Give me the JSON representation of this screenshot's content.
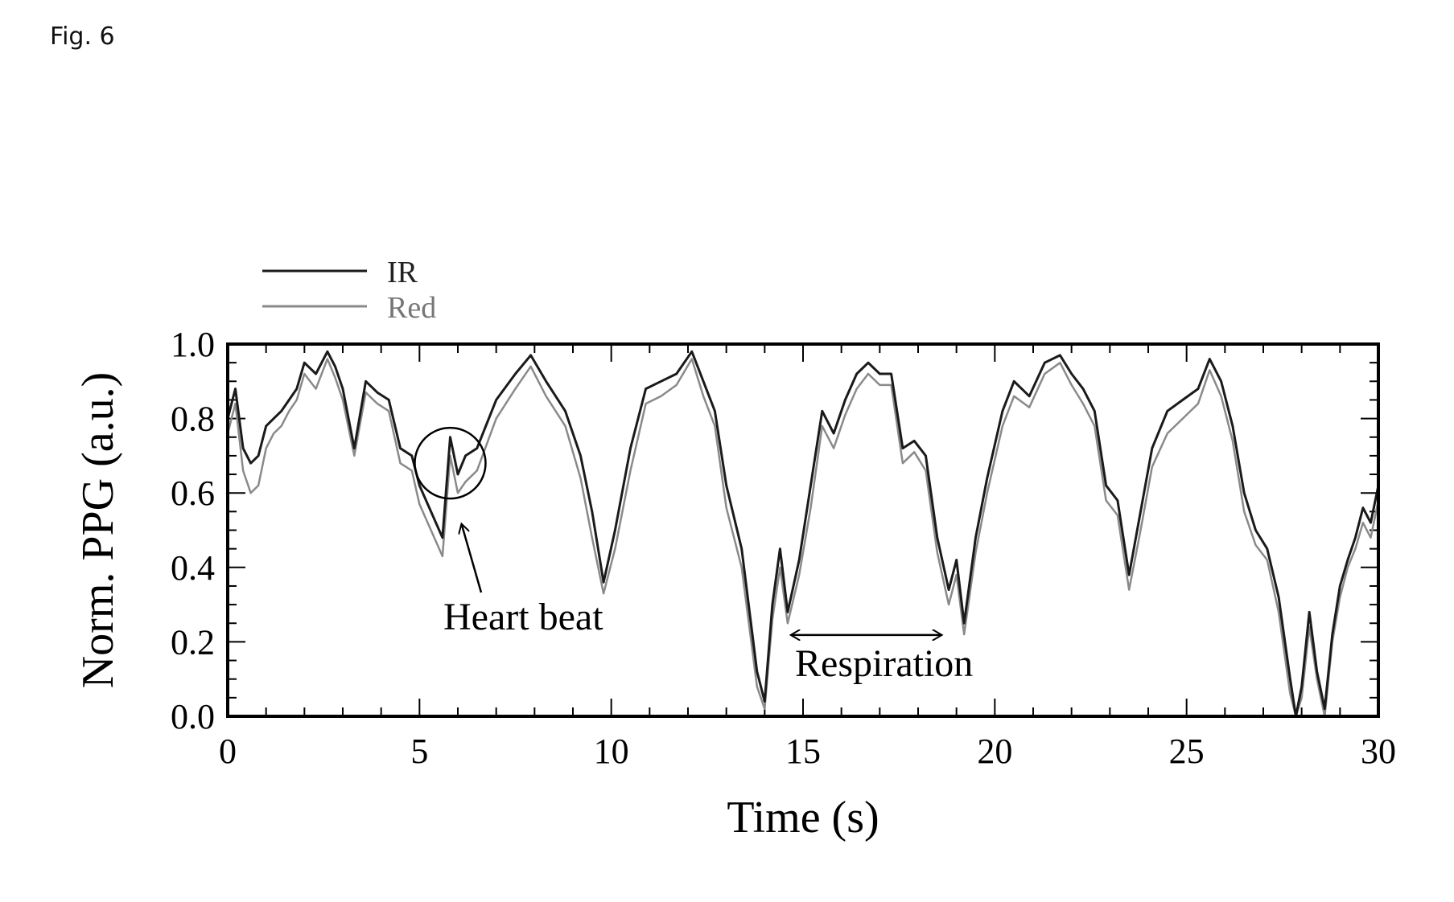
{
  "figure_label": "Fig. 6",
  "colors": {
    "ir": "#1a1a1a",
    "red": "#8a8a8a",
    "axis": "#000000"
  },
  "chart_data": {
    "type": "line",
    "xlabel": "Time (s)",
    "ylabel": "Norm. PPG (a.u.)",
    "xlim": [
      0,
      30
    ],
    "ylim": [
      0,
      1
    ],
    "xticks": [
      "0",
      "5",
      "10",
      "15",
      "20",
      "25",
      "30"
    ],
    "yticks": [
      "0.0",
      "0.2",
      "0.4",
      "0.6",
      "0.8",
      "1.0"
    ],
    "legend_position": "top-left",
    "grid": false,
    "series": [
      {
        "name": "IR",
        "x": [
          0,
          0.2,
          0.4,
          0.6,
          0.8,
          1.0,
          1.2,
          1.4,
          1.6,
          1.8,
          2.0,
          2.3,
          2.6,
          2.8,
          3.0,
          3.3,
          3.6,
          3.9,
          4.2,
          4.5,
          4.8,
          5.0,
          5.3,
          5.6,
          5.8,
          6.0,
          6.2,
          6.5,
          7.0,
          7.5,
          7.9,
          8.3,
          8.8,
          9.2,
          9.5,
          9.8,
          10.1,
          10.5,
          10.9,
          11.3,
          11.7,
          12.1,
          12.4,
          12.7,
          13.0,
          13.4,
          13.8,
          14.0,
          14.2,
          14.4,
          14.6,
          14.9,
          15.2,
          15.5,
          15.8,
          16.1,
          16.4,
          16.7,
          17.0,
          17.3,
          17.6,
          17.9,
          18.2,
          18.5,
          18.8,
          19.0,
          19.2,
          19.5,
          19.8,
          20.2,
          20.5,
          20.9,
          21.3,
          21.7,
          22.0,
          22.3,
          22.6,
          22.9,
          23.2,
          23.5,
          23.8,
          24.1,
          24.5,
          24.9,
          25.3,
          25.6,
          25.9,
          26.2,
          26.5,
          26.8,
          27.1,
          27.4,
          27.7,
          27.85,
          28.0,
          28.2,
          28.4,
          28.6,
          28.8,
          29.0,
          29.2,
          29.4,
          29.6,
          29.8,
          30.0
        ],
        "values": [
          0.8,
          0.88,
          0.72,
          0.68,
          0.7,
          0.78,
          0.8,
          0.82,
          0.85,
          0.88,
          0.95,
          0.92,
          0.98,
          0.94,
          0.88,
          0.72,
          0.9,
          0.87,
          0.85,
          0.72,
          0.7,
          0.62,
          0.55,
          0.48,
          0.75,
          0.65,
          0.7,
          0.72,
          0.85,
          0.92,
          0.97,
          0.9,
          0.82,
          0.7,
          0.55,
          0.36,
          0.5,
          0.72,
          0.88,
          0.9,
          0.92,
          0.98,
          0.9,
          0.82,
          0.62,
          0.45,
          0.12,
          0.04,
          0.3,
          0.45,
          0.28,
          0.42,
          0.62,
          0.82,
          0.76,
          0.85,
          0.92,
          0.95,
          0.92,
          0.92,
          0.72,
          0.74,
          0.7,
          0.48,
          0.34,
          0.42,
          0.25,
          0.48,
          0.64,
          0.82,
          0.9,
          0.86,
          0.95,
          0.97,
          0.92,
          0.88,
          0.82,
          0.62,
          0.58,
          0.38,
          0.55,
          0.72,
          0.82,
          0.85,
          0.88,
          0.96,
          0.9,
          0.78,
          0.6,
          0.5,
          0.45,
          0.32,
          0.1,
          0.0,
          0.08,
          0.28,
          0.12,
          0.02,
          0.22,
          0.35,
          0.42,
          0.48,
          0.56,
          0.52,
          0.62
        ]
      },
      {
        "name": "Red",
        "x": [
          0,
          0.2,
          0.4,
          0.6,
          0.8,
          1.0,
          1.2,
          1.4,
          1.6,
          1.8,
          2.0,
          2.3,
          2.6,
          2.8,
          3.0,
          3.3,
          3.6,
          3.9,
          4.2,
          4.5,
          4.8,
          5.0,
          5.3,
          5.6,
          5.8,
          6.0,
          6.2,
          6.5,
          7.0,
          7.5,
          7.9,
          8.3,
          8.8,
          9.2,
          9.5,
          9.8,
          10.1,
          10.5,
          10.9,
          11.3,
          11.7,
          12.1,
          12.4,
          12.7,
          13.0,
          13.4,
          13.8,
          14.0,
          14.2,
          14.4,
          14.6,
          14.9,
          15.2,
          15.5,
          15.8,
          16.1,
          16.4,
          16.7,
          17.0,
          17.3,
          17.6,
          17.9,
          18.2,
          18.5,
          18.8,
          19.0,
          19.2,
          19.5,
          19.8,
          20.2,
          20.5,
          20.9,
          21.3,
          21.7,
          22.0,
          22.3,
          22.6,
          22.9,
          23.2,
          23.5,
          23.8,
          24.1,
          24.5,
          24.9,
          25.3,
          25.6,
          25.9,
          26.2,
          26.5,
          26.8,
          27.1,
          27.4,
          27.7,
          27.85,
          28.0,
          28.2,
          28.4,
          28.6,
          28.8,
          29.0,
          29.2,
          29.4,
          29.6,
          29.8,
          30.0
        ],
        "values": [
          0.76,
          0.84,
          0.66,
          0.6,
          0.62,
          0.72,
          0.76,
          0.78,
          0.82,
          0.85,
          0.92,
          0.88,
          0.96,
          0.91,
          0.85,
          0.7,
          0.87,
          0.84,
          0.82,
          0.68,
          0.66,
          0.57,
          0.5,
          0.43,
          0.7,
          0.6,
          0.63,
          0.66,
          0.8,
          0.88,
          0.94,
          0.86,
          0.78,
          0.64,
          0.48,
          0.33,
          0.45,
          0.66,
          0.84,
          0.86,
          0.89,
          0.96,
          0.86,
          0.78,
          0.56,
          0.4,
          0.08,
          0.02,
          0.26,
          0.4,
          0.25,
          0.38,
          0.56,
          0.78,
          0.72,
          0.81,
          0.88,
          0.92,
          0.89,
          0.89,
          0.68,
          0.71,
          0.66,
          0.44,
          0.3,
          0.38,
          0.22,
          0.44,
          0.6,
          0.78,
          0.86,
          0.83,
          0.92,
          0.95,
          0.89,
          0.84,
          0.78,
          0.58,
          0.54,
          0.34,
          0.5,
          0.67,
          0.76,
          0.8,
          0.84,
          0.93,
          0.86,
          0.74,
          0.55,
          0.46,
          0.42,
          0.28,
          0.06,
          0.0,
          0.05,
          0.24,
          0.1,
          0.0,
          0.2,
          0.32,
          0.4,
          0.45,
          0.52,
          0.48,
          0.58
        ]
      }
    ],
    "annotations": [
      {
        "text": "Heart beat",
        "circle_center": [
          5.8,
          0.68
        ],
        "points_to": [
          6.1,
          0.58
        ]
      },
      {
        "text": "Respiration",
        "arrow_from": [
          14.7,
          0.24
        ],
        "arrow_to": [
          18.6,
          0.24
        ]
      }
    ]
  }
}
